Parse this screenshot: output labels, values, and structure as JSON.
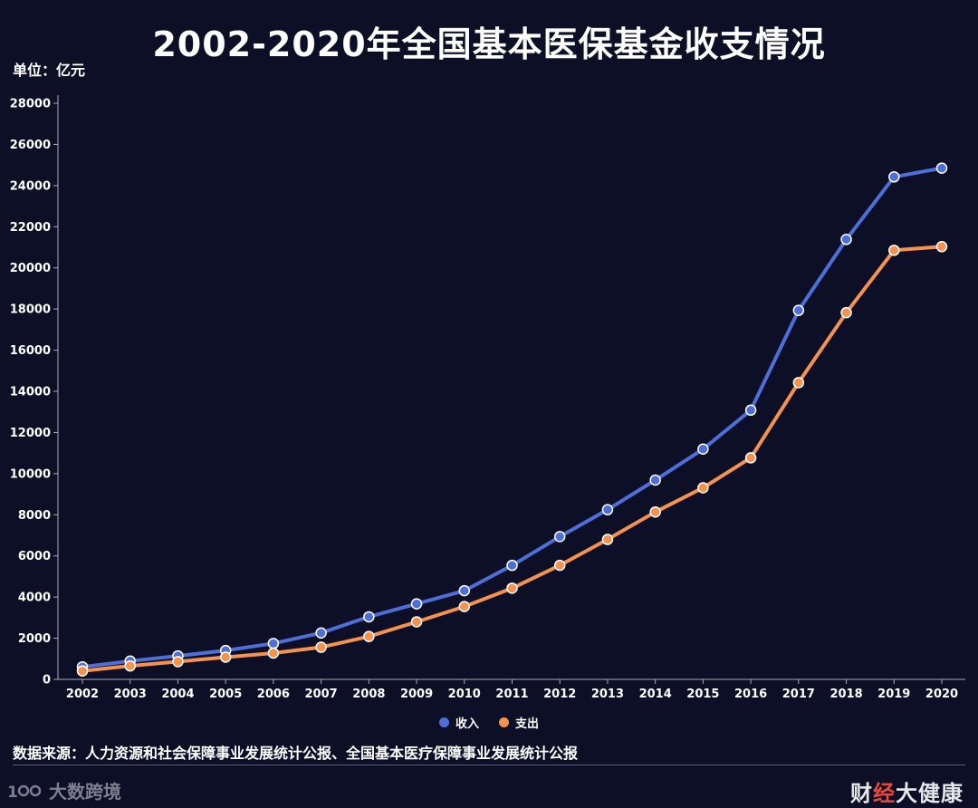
{
  "header": {
    "title": "2002-2020年全国基本医保基金收支情况",
    "unit": "单位：亿元"
  },
  "chart_data": {
    "type": "line",
    "title": "2002-2020年全国基本医保基金收支情况",
    "ylabel": "单位：亿元",
    "ylim": [
      0,
      28000
    ],
    "yticks": [
      0,
      2000,
      4000,
      6000,
      8000,
      10000,
      12000,
      14000,
      16000,
      18000,
      20000,
      22000,
      24000,
      26000,
      28000
    ],
    "x": [
      "2002",
      "2003",
      "2004",
      "2005",
      "2006",
      "2007",
      "2008",
      "2009",
      "2010",
      "2011",
      "2012",
      "2013",
      "2014",
      "2015",
      "2016",
      "2017",
      "2018",
      "2019",
      "2020"
    ],
    "series": [
      {
        "name": "收入",
        "color": "#4f6fd8",
        "values": [
          608,
          891,
          1141,
          1405,
          1747,
          2257,
          3040,
          3672,
          4309,
          5539,
          6939,
          8248,
          9687,
          11193,
          13084,
          17932,
          21384,
          24421,
          24846
        ]
      },
      {
        "name": "支出",
        "color": "#f5924d",
        "values": [
          409,
          654,
          862,
          1079,
          1277,
          1562,
          2084,
          2797,
          3538,
          4431,
          5544,
          6801,
          8134,
          9312,
          10767,
          14422,
          17822,
          20854,
          21032
        ]
      }
    ],
    "grid": false,
    "legend_position": "bottom-center"
  },
  "footer": {
    "source": "数据来源：人力资源和社会保障事业发展统计公报、全国基本医疗保障事业发展统计公报",
    "logo_left": "大数跨境",
    "logo_right_a": "财",
    "logo_right_slash": "经",
    "logo_right_b": "大健康"
  }
}
